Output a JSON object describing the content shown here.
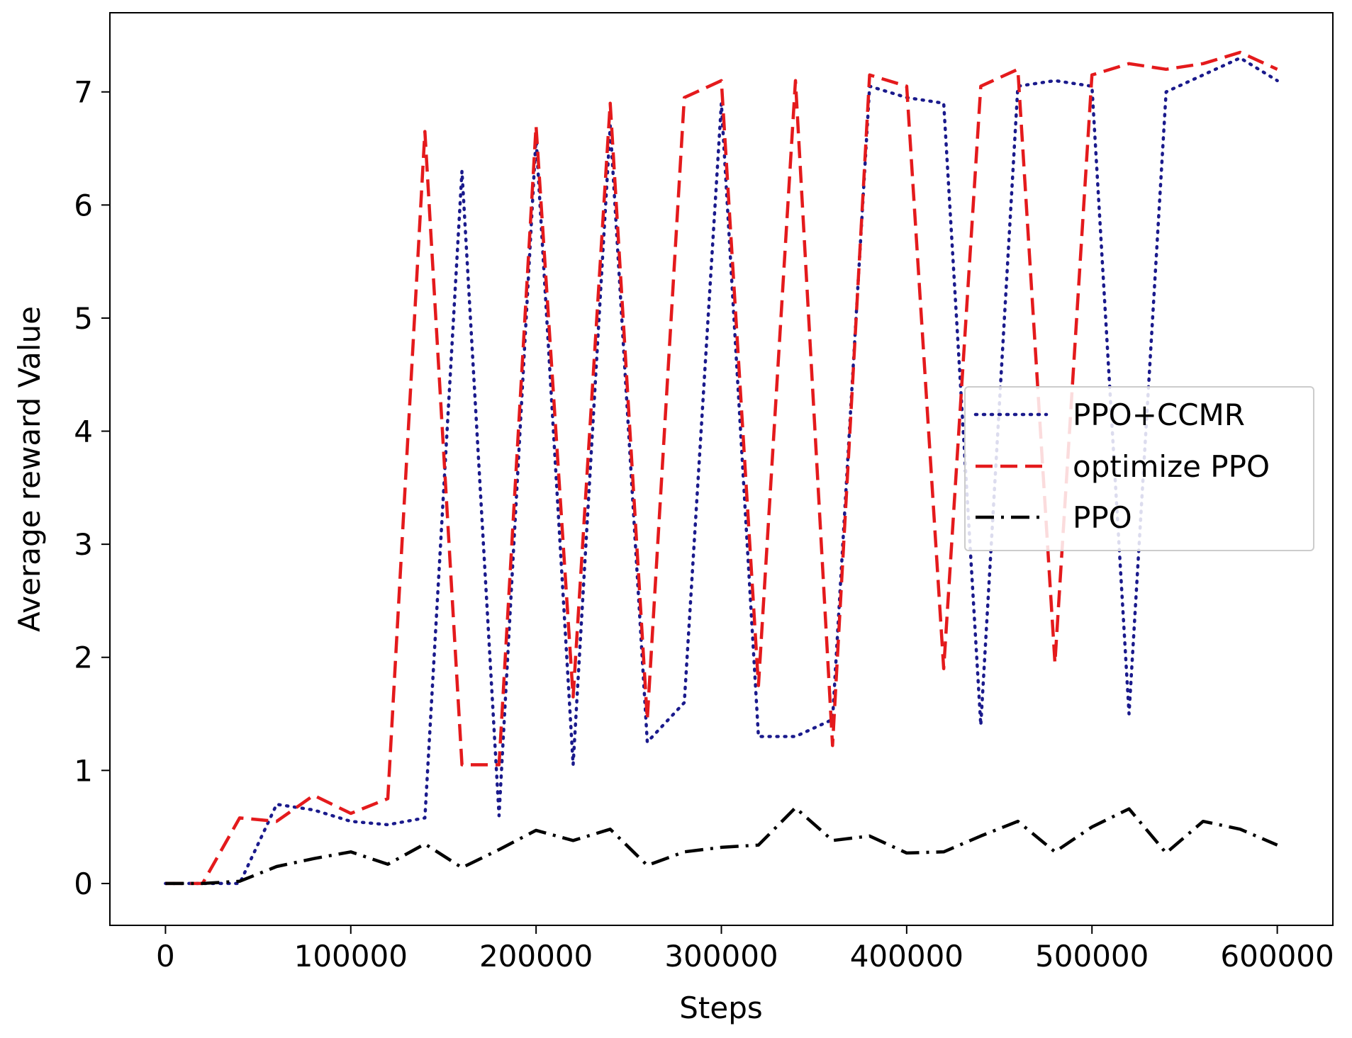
{
  "chart_data": {
    "type": "line",
    "title": "",
    "xlabel": "Steps",
    "ylabel": "Average reward Value",
    "xlim": [
      -30000,
      630000
    ],
    "ylim": [
      -0.37,
      7.7
    ],
    "xticks": [
      0,
      100000,
      200000,
      300000,
      400000,
      500000,
      600000
    ],
    "xtick_labels": [
      "0",
      "100000",
      "200000",
      "300000",
      "400000",
      "500000",
      "600000"
    ],
    "yticks": [
      0,
      1,
      2,
      3,
      4,
      5,
      6,
      7
    ],
    "ytick_labels": [
      "0",
      "1",
      "2",
      "3",
      "4",
      "5",
      "6",
      "7"
    ],
    "grid": false,
    "legend_position": "center-right",
    "x": [
      0,
      20000,
      40000,
      60000,
      80000,
      100000,
      120000,
      140000,
      160000,
      180000,
      200000,
      220000,
      240000,
      260000,
      280000,
      300000,
      320000,
      340000,
      360000,
      380000,
      400000,
      420000,
      440000,
      460000,
      480000,
      500000,
      520000,
      540000,
      560000,
      580000,
      600000
    ],
    "series": [
      {
        "name": "PPO+CCMR",
        "color": "#1a1a8c",
        "style": "dotted",
        "values": [
          0,
          0,
          0,
          0.7,
          0.65,
          0.55,
          0.52,
          0.58,
          6.3,
          0.6,
          6.6,
          1.05,
          6.7,
          1.25,
          1.6,
          6.9,
          1.3,
          1.3,
          1.45,
          7.05,
          6.95,
          6.9,
          1.4,
          7.05,
          7.1,
          7.05,
          1.5,
          7.0,
          7.15,
          7.3,
          7.1
        ]
      },
      {
        "name": "optimize PPO",
        "color": "#e41a1c",
        "style": "dashed",
        "values": [
          0,
          0,
          0.58,
          0.55,
          0.78,
          0.62,
          0.75,
          6.65,
          1.05,
          1.05,
          6.7,
          1.65,
          6.9,
          1.45,
          6.95,
          7.1,
          1.75,
          7.1,
          1.22,
          7.15,
          7.05,
          1.9,
          7.05,
          7.2,
          1.95,
          7.15,
          7.25,
          7.2,
          7.25,
          7.35,
          7.2
        ]
      },
      {
        "name": "PPO",
        "color": "#000000",
        "style": "dashdot",
        "values": [
          0,
          0,
          0.02,
          0.15,
          0.22,
          0.28,
          0.17,
          0.35,
          0.14,
          0.3,
          0.47,
          0.38,
          0.48,
          0.16,
          0.28,
          0.32,
          0.34,
          0.67,
          0.38,
          0.42,
          0.27,
          0.28,
          0.42,
          0.55,
          0.28,
          0.5,
          0.66,
          0.27,
          0.55,
          0.48,
          0.34
        ]
      }
    ]
  }
}
